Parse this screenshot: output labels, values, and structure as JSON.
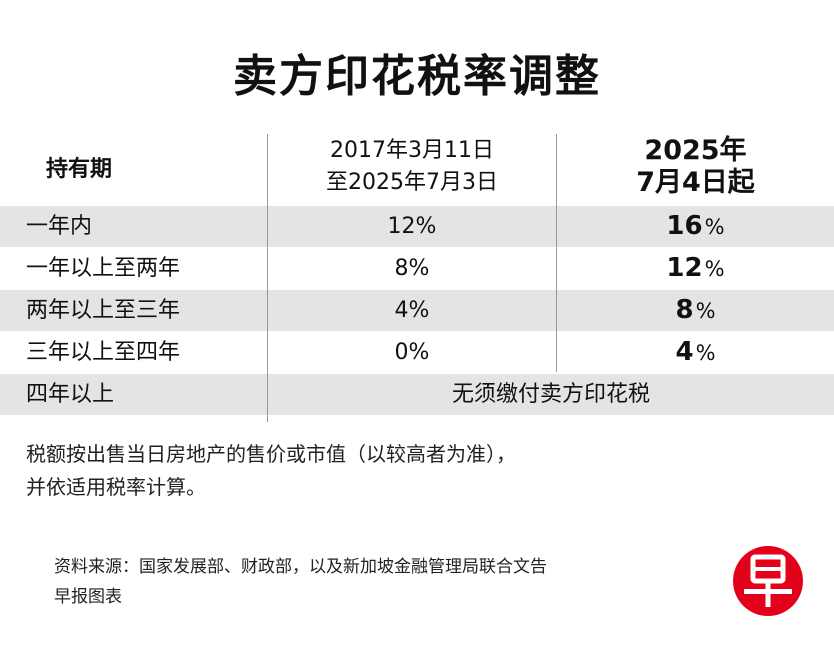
{
  "title": "卖方印花税率调整",
  "table": {
    "header": {
      "period": "持有期",
      "old_line1": "2017年3月11日",
      "old_line2": "至2025年7月3日",
      "new_line1": "2025年",
      "new_line2": "7月4日起"
    },
    "rows": [
      {
        "label": "一年内",
        "old": "12%",
        "new_value": "16",
        "new_unit": "%"
      },
      {
        "label": "一年以上至两年",
        "old": "8%",
        "new_value": "12",
        "new_unit": "%"
      },
      {
        "label": "两年以上至三年",
        "old": "4%",
        "new_value": "8",
        "new_unit": "%"
      },
      {
        "label": "三年以上至四年",
        "old": "0%",
        "new_value": "4",
        "new_unit": "%"
      }
    ],
    "last_row": {
      "label": "四年以上",
      "value": "无须缴付卖方印花税"
    }
  },
  "note": {
    "line1": "税额按出售当日房地产的售价或市值（以较高者为准），",
    "line2": "并依适用税率计算。"
  },
  "source": {
    "line1": "资料来源：国家发展部、财政部，以及新加坡金融管理局联合文告",
    "line2": "早报图表"
  },
  "logo": {
    "char": "早",
    "color": "#e2001a"
  }
}
